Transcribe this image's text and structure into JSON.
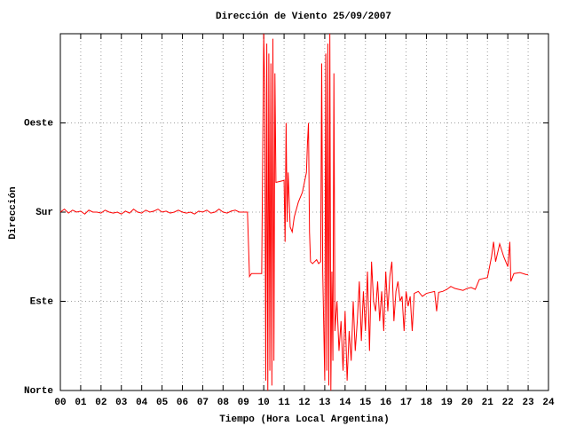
{
  "chart_data": {
    "type": "line",
    "title": "Dirección de Viento 25/09/2007",
    "x_label": "Tiempo (Hora Local Argentina)",
    "y_label": "Dirección",
    "xlim": [
      0,
      24
    ],
    "xticks": [
      {
        "value": 0,
        "label": "00"
      },
      {
        "value": 1,
        "label": "01"
      },
      {
        "value": 2,
        "label": "02"
      },
      {
        "value": 3,
        "label": "03"
      },
      {
        "value": 4,
        "label": "04"
      },
      {
        "value": 5,
        "label": "05"
      },
      {
        "value": 6,
        "label": "06"
      },
      {
        "value": 7,
        "label": "07"
      },
      {
        "value": 8,
        "label": "08"
      },
      {
        "value": 9,
        "label": "09"
      },
      10,
      11,
      12,
      13,
      14,
      15,
      16,
      17,
      18,
      19,
      20,
      21,
      22,
      23,
      24
    ],
    "ylim": [
      0,
      360
    ],
    "yticks": [
      {
        "value": 0,
        "label": "Norte"
      },
      {
        "value": 90,
        "label": "Este"
      },
      {
        "value": 180,
        "label": "Sur"
      },
      {
        "value": 270,
        "label": "Oeste"
      }
    ],
    "grid": true,
    "x": [
      0,
      0.2,
      0.4,
      0.6,
      0.8,
      1.0,
      1.2,
      1.4,
      1.6,
      1.8,
      2.0,
      2.2,
      2.4,
      2.6,
      2.8,
      3.0,
      3.2,
      3.4,
      3.6,
      3.8,
      4.0,
      4.2,
      4.4,
      4.6,
      4.8,
      5.0,
      5.2,
      5.4,
      5.6,
      5.8,
      6.0,
      6.2,
      6.4,
      6.6,
      6.8,
      7.0,
      7.2,
      7.4,
      7.6,
      7.8,
      8.0,
      8.2,
      8.4,
      8.6,
      8.8,
      9.0,
      9.2,
      9.3,
      9.4,
      9.6,
      9.9,
      10.0,
      10.05,
      10.1,
      10.15,
      10.2,
      10.25,
      10.3,
      10.35,
      10.4,
      10.45,
      10.5,
      10.55,
      10.6,
      10.8,
      11.0,
      11.05,
      11.1,
      11.15,
      11.2,
      11.3,
      11.4,
      11.5,
      11.7,
      11.9,
      12.1,
      12.15,
      12.2,
      12.25,
      12.3,
      12.4,
      12.5,
      12.6,
      12.7,
      12.8,
      12.85,
      12.9,
      13.0,
      13.05,
      13.1,
      13.15,
      13.2,
      13.25,
      13.3,
      13.35,
      13.4,
      13.45,
      13.5,
      13.6,
      13.7,
      13.8,
      13.9,
      14.0,
      14.1,
      14.2,
      14.3,
      14.4,
      14.5,
      14.6,
      14.7,
      14.8,
      14.9,
      15.0,
      15.1,
      15.2,
      15.3,
      15.4,
      15.5,
      15.6,
      15.7,
      15.8,
      15.9,
      16.0,
      16.1,
      16.2,
      16.3,
      16.4,
      16.5,
      16.6,
      16.7,
      16.8,
      16.9,
      17.0,
      17.1,
      17.2,
      17.3,
      17.4,
      17.6,
      17.8,
      18.0,
      18.2,
      18.4,
      18.5,
      18.6,
      18.8,
      19.0,
      19.2,
      19.4,
      19.6,
      19.8,
      20.0,
      20.2,
      20.4,
      20.6,
      20.8,
      21.0,
      21.2,
      21.3,
      21.4,
      21.6,
      21.8,
      22.0,
      22.1,
      22.15,
      22.3,
      22.6,
      22.9,
      23.0
    ],
    "series": [
      {
        "color": "#ff0000",
        "values": [
          180,
          183,
          179,
          182,
          180,
          181,
          178,
          182,
          180,
          180,
          179,
          182,
          180,
          179,
          180,
          178,
          181,
          179,
          183,
          180,
          179,
          182,
          180,
          181,
          183,
          180,
          181,
          179,
          180,
          182,
          180,
          179,
          180,
          178,
          181,
          180,
          182,
          179,
          180,
          183,
          180,
          179,
          181,
          182,
          180,
          180,
          180,
          115,
          118,
          118,
          118,
          360,
          300,
          10,
          350,
          0,
          340,
          20,
          330,
          5,
          355,
          30,
          320,
          210,
          211,
          212,
          150,
          270,
          170,
          220,
          165,
          160,
          175,
          190,
          200,
          220,
          250,
          270,
          160,
          130,
          128,
          130,
          132,
          128,
          130,
          330,
          120,
          10,
          340,
          20,
          350,
          5,
          360,
          0,
          120,
          30,
          320,
          60,
          90,
          40,
          70,
          20,
          80,
          10,
          60,
          30,
          90,
          40,
          70,
          110,
          50,
          100,
          60,
          120,
          40,
          130,
          90,
          80,
          110,
          70,
          100,
          60,
          120,
          80,
          115,
          130,
          70,
          100,
          110,
          90,
          95,
          60,
          100,
          85,
          95,
          60,
          98,
          100,
          95,
          98,
          99,
          100,
          80,
          99,
          100,
          102,
          105,
          103,
          102,
          101,
          103,
          104,
          102,
          112,
          113,
          114,
          135,
          150,
          130,
          148,
          135,
          125,
          150,
          110,
          118,
          119,
          117,
          117
        ]
      }
    ]
  }
}
